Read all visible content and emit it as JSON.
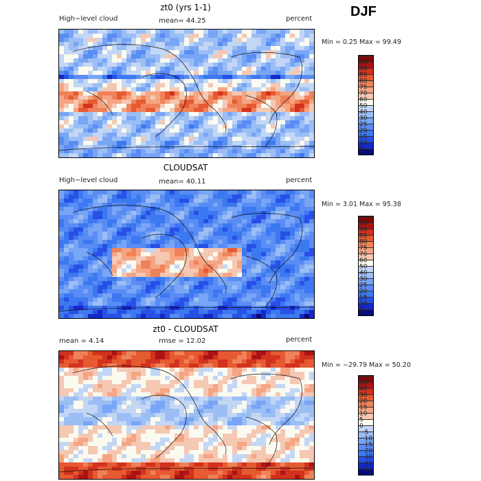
{
  "season": "DJF",
  "panels": [
    {
      "id": "model",
      "title": "zt0 (yrs 1-1)",
      "left_label": "High−level cloud",
      "center_label": "mean=  44.25",
      "right_label": "percent",
      "minmax": "Min =    0.25 Max =   99.49"
    },
    {
      "id": "obs",
      "title": "CLOUDSAT",
      "left_label": "High−level cloud",
      "center_label": "mean=  40.11",
      "right_label": "percent",
      "minmax": "Min =    3.01 Max =   95.38"
    },
    {
      "id": "diff",
      "title": "zt0 - CLOUDSAT",
      "left_label": "mean =    4.14",
      "center_label": "rmse =   12.02",
      "right_label": "percent",
      "minmax": "Min = −29.79 Max =   50.20"
    }
  ],
  "chart_data": [
    {
      "type": "heatmap",
      "title": "zt0 (yrs 1-1)",
      "variable": "High-level cloud",
      "units": "percent",
      "mean": 44.25,
      "min": 0.25,
      "max": 99.49,
      "levels": [
        "5",
        "10",
        "15",
        "20",
        "25",
        "30",
        "40",
        "50",
        "60",
        "70",
        "75",
        "80",
        "85",
        "90",
        "95"
      ],
      "colors": [
        "#0a0a78",
        "#1428c8",
        "#2850e6",
        "#3c78f0",
        "#5a8cf5",
        "#78a5f5",
        "#9bbef5",
        "#c3d7f5",
        "#fafaf0",
        "#f5c8b4",
        "#f5a582",
        "#f0825a",
        "#e65a32",
        "#d2321e",
        "#aa1414",
        "#7d0a0a"
      ]
    },
    {
      "type": "heatmap",
      "title": "CLOUDSAT",
      "variable": "High-level cloud",
      "units": "percent",
      "mean": 40.11,
      "min": 3.01,
      "max": 95.38,
      "levels": [
        "5",
        "10",
        "15",
        "20",
        "25",
        "30",
        "40",
        "50",
        "60",
        "70",
        "75",
        "80",
        "85",
        "90",
        "95"
      ],
      "colors": [
        "#0a0a78",
        "#1428c8",
        "#2850e6",
        "#3c78f0",
        "#5a8cf5",
        "#78a5f5",
        "#9bbef5",
        "#c3d7f5",
        "#fafaf0",
        "#f5c8b4",
        "#f5a582",
        "#f0825a",
        "#e65a32",
        "#d2321e",
        "#aa1414",
        "#7d0a0a"
      ]
    },
    {
      "type": "heatmap",
      "title": "zt0 - CLOUDSAT",
      "units": "percent",
      "mean": 4.14,
      "rmse": 12.02,
      "min": -29.79,
      "max": 50.2,
      "levels": [
        "−50",
        "−40",
        "−30",
        "−20",
        "−15",
        "−10",
        "−5",
        "0",
        "5",
        "10",
        "15",
        "20",
        "30",
        "40",
        "50"
      ],
      "colors": [
        "#0a0a78",
        "#1428c8",
        "#2850e6",
        "#3c78f0",
        "#5a8cf5",
        "#78a5f5",
        "#9bbef5",
        "#c3d7f5",
        "#fafaf0",
        "#f5c8b4",
        "#f5a582",
        "#f0825a",
        "#e65a32",
        "#d2321e",
        "#aa1414",
        "#7d0a0a"
      ]
    }
  ]
}
